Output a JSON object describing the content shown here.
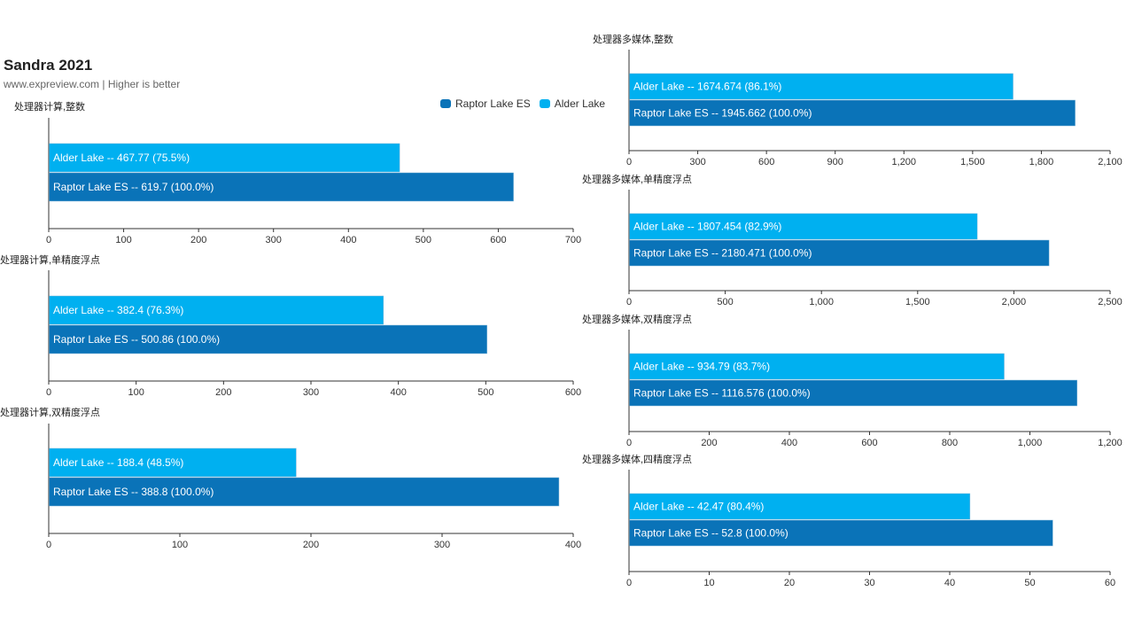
{
  "header": {
    "title": "Sandra 2021",
    "subtitle": "www.expreview.com | Higher is better"
  },
  "legend": [
    {
      "name": "Raptor Lake ES",
      "color": "#0a73b8"
    },
    {
      "name": "Alder Lake",
      "color": "#00b0f0"
    }
  ],
  "colors": {
    "raptor": "#0a73b8",
    "alder": "#00b0f0",
    "axis": "#333333"
  },
  "chart_data": [
    {
      "type": "bar",
      "title": "处理器计算,整数",
      "series": [
        {
          "name": "Alder Lake",
          "value": 467.77,
          "label": "Alder Lake  --  467.77 (75.5%)"
        },
        {
          "name": "Raptor Lake ES",
          "value": 619.7,
          "label": "Raptor Lake ES  --  619.7 (100.0%)"
        }
      ],
      "xlim": [
        0,
        700
      ],
      "ticks": [
        "0",
        "100",
        "200",
        "300",
        "400",
        "500",
        "600",
        "700"
      ]
    },
    {
      "type": "bar",
      "title": "处理器计算,单精度浮点",
      "series": [
        {
          "name": "Alder Lake",
          "value": 382.4,
          "label": "Alder Lake  --  382.4 (76.3%)"
        },
        {
          "name": "Raptor Lake ES",
          "value": 500.86,
          "label": "Raptor Lake ES  --  500.86 (100.0%)"
        }
      ],
      "xlim": [
        0,
        600
      ],
      "ticks": [
        "0",
        "100",
        "200",
        "300",
        "400",
        "500",
        "600"
      ]
    },
    {
      "type": "bar",
      "title": "处理器计算,双精度浮点",
      "series": [
        {
          "name": "Alder Lake",
          "value": 188.4,
          "label": "Alder Lake  --  188.4 (48.5%)"
        },
        {
          "name": "Raptor Lake ES",
          "value": 388.8,
          "label": "Raptor Lake ES  --  388.8 (100.0%)"
        }
      ],
      "xlim": [
        0,
        400
      ],
      "ticks": [
        "0",
        "100",
        "200",
        "300",
        "400"
      ]
    },
    {
      "type": "bar",
      "title": "处理器多媒体,整数",
      "series": [
        {
          "name": "Alder Lake",
          "value": 1674.674,
          "label": "Alder Lake  --  1674.674 (86.1%)"
        },
        {
          "name": "Raptor Lake ES",
          "value": 1945.662,
          "label": "Raptor Lake ES  --  1945.662 (100.0%)"
        }
      ],
      "xlim": [
        0,
        2100
      ],
      "ticks": [
        "0",
        "300",
        "600",
        "900",
        "1,200",
        "1,500",
        "1,800",
        "2,100"
      ]
    },
    {
      "type": "bar",
      "title": "处理器多媒体,单精度浮点",
      "series": [
        {
          "name": "Alder Lake",
          "value": 1807.454,
          "label": "Alder Lake  --  1807.454 (82.9%)"
        },
        {
          "name": "Raptor Lake ES",
          "value": 2180.471,
          "label": "Raptor Lake ES  --  2180.471 (100.0%)"
        }
      ],
      "xlim": [
        0,
        2500
      ],
      "ticks": [
        "0",
        "500",
        "1,000",
        "1,500",
        "2,000",
        "2,500"
      ]
    },
    {
      "type": "bar",
      "title": "处理器多媒体,双精度浮点",
      "series": [
        {
          "name": "Alder Lake",
          "value": 934.79,
          "label": "Alder Lake  --  934.79 (83.7%)"
        },
        {
          "name": "Raptor Lake ES",
          "value": 1116.576,
          "label": "Raptor Lake ES  --  1116.576 (100.0%)"
        }
      ],
      "xlim": [
        0,
        1200
      ],
      "ticks": [
        "0",
        "200",
        "400",
        "600",
        "800",
        "1,000",
        "1,200"
      ]
    },
    {
      "type": "bar",
      "title": "处理器多媒体,四精度浮点",
      "series": [
        {
          "name": "Alder Lake",
          "value": 42.47,
          "label": "Alder Lake  --  42.47 (80.4%)"
        },
        {
          "name": "Raptor Lake ES",
          "value": 52.8,
          "label": "Raptor Lake ES  --  52.8 (100.0%)"
        }
      ],
      "xlim": [
        0,
        60
      ],
      "ticks": [
        "0",
        "10",
        "20",
        "30",
        "40",
        "50",
        "60"
      ]
    }
  ]
}
